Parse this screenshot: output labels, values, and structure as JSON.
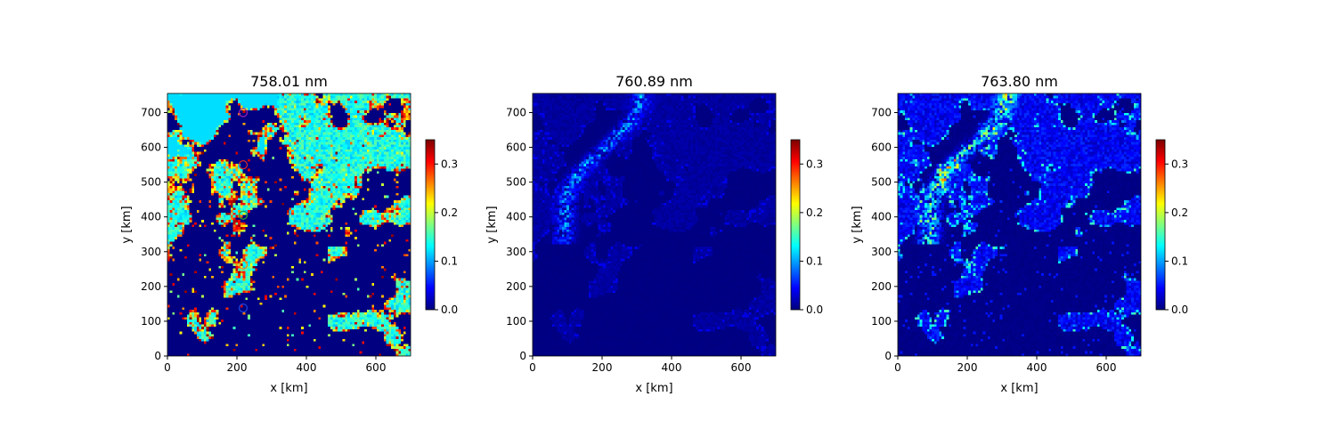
{
  "chart_data": [
    {
      "type": "heatmap",
      "title": "758.01 nm",
      "xlabel": "x [km]",
      "ylabel": "y [km]",
      "xlim": [
        0,
        700
      ],
      "ylim": [
        0,
        755
      ],
      "xticks": [
        0,
        200,
        400,
        600
      ],
      "yticks": [
        0,
        100,
        200,
        300,
        400,
        500,
        600,
        700
      ],
      "colormap": "jet",
      "clim": [
        0,
        0.35
      ],
      "colorbar_ticks": [
        "0.0",
        "0.1",
        "0.2",
        "0.3"
      ],
      "markers": [
        {
          "x": 218,
          "y": 700,
          "color": "#9b1fa8",
          "shape": "circle"
        },
        {
          "x": 218,
          "y": 550,
          "color": "#d62728",
          "shape": "circle"
        },
        {
          "x": 218,
          "y": 405,
          "color": "#2ca02c",
          "shape": "circle"
        },
        {
          "x": 218,
          "y": 262,
          "color": "#ff7f0e",
          "shape": "circle"
        },
        {
          "x": 218,
          "y": 138,
          "color": "#1f3fd4",
          "shape": "circle"
        }
      ]
    },
    {
      "type": "heatmap",
      "title": "760.89 nm",
      "xlabel": "x [km]",
      "ylabel": "y [km]",
      "xlim": [
        0,
        700
      ],
      "ylim": [
        0,
        755
      ],
      "xticks": [
        0,
        200,
        400,
        600
      ],
      "yticks": [
        0,
        100,
        200,
        300,
        400,
        500,
        600,
        700
      ],
      "colormap": "jet",
      "clim": [
        0,
        0.35
      ],
      "colorbar_ticks": [
        "0.0",
        "0.1",
        "0.2",
        "0.3"
      ],
      "markers": []
    },
    {
      "type": "heatmap",
      "title": "763.80 nm",
      "xlabel": "x [km]",
      "ylabel": "y [km]",
      "xlim": [
        0,
        700
      ],
      "ylim": [
        0,
        755
      ],
      "xticks": [
        0,
        200,
        400,
        600
      ],
      "yticks": [
        0,
        100,
        200,
        300,
        400,
        500,
        600,
        700
      ],
      "colormap": "jet",
      "clim": [
        0,
        0.35
      ],
      "colorbar_ticks": [
        "0.0",
        "0.1",
        "0.2",
        "0.3"
      ],
      "markers": []
    }
  ]
}
